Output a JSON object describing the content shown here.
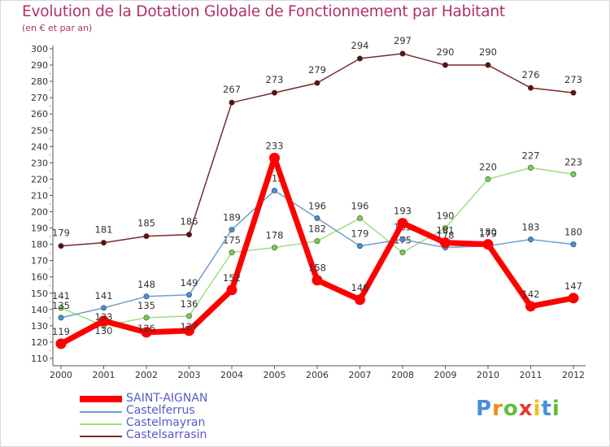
{
  "header": {
    "title": "Evolution de la Dotation Globale de Fonctionnement par Habitant",
    "subtitle": "(en € et par an)"
  },
  "legend": {
    "items": [
      {
        "label": "SAINT-AIGNAN",
        "color": "#ff0000"
      },
      {
        "label": "Castelferrus",
        "color": "#6e9fd0"
      },
      {
        "label": "Castelmayran",
        "color": "#9de07a"
      },
      {
        "label": "Castelsarrasin",
        "color": "#7a2a2a"
      }
    ]
  },
  "logo": {
    "letters": [
      "P",
      "r",
      "o",
      "x",
      "i",
      "t",
      "i"
    ],
    "colors": [
      "#4a8fd8",
      "#f08a1c",
      "#5bbf3a",
      "#e03a3a",
      "#f0c020",
      "#4a8fd8",
      "#5bbf3a"
    ]
  },
  "chart_data": {
    "type": "line",
    "title": "Evolution de la Dotation Globale de Fonctionnement par Habitant",
    "ylabel": "(en € et par an)",
    "xlabel": "",
    "ylim": [
      110,
      300
    ],
    "y_ticks": [
      110,
      120,
      130,
      140,
      150,
      160,
      170,
      180,
      190,
      200,
      210,
      220,
      230,
      240,
      250,
      260,
      270,
      280,
      290,
      300
    ],
    "categories": [
      "2000",
      "2001",
      "2002",
      "2003",
      "2004",
      "2005",
      "2006",
      "2007",
      "2008",
      "2009",
      "2010",
      "2011",
      "2012"
    ],
    "grid": false,
    "legend_position": "bottom-left",
    "series": [
      {
        "name": "Castelsarrasin",
        "color": "#7a2a2a",
        "marker_color": "#5a1010",
        "values": [
          179,
          181,
          185,
          186,
          267,
          273,
          279,
          294,
          297,
          290,
          290,
          276,
          273
        ]
      },
      {
        "name": "Castelmayran",
        "color": "#9de07a",
        "marker_color": "#7ad04a",
        "values": [
          141,
          130,
          135,
          136,
          175,
          178,
          182,
          196,
          175,
          190,
          220,
          227,
          223
        ]
      },
      {
        "name": "Castelferrus",
        "color": "#6e9fd0",
        "marker_color": "#4a8fd8",
        "values": [
          135,
          141,
          148,
          149,
          189,
          213,
          196,
          179,
          183,
          178,
          179,
          183,
          180
        ]
      },
      {
        "name": "SAINT-AIGNAN",
        "color": "#ff0000",
        "marker_color": "#ff0000",
        "values": [
          119,
          133,
          126,
          127,
          152,
          233,
          158,
          146,
          193,
          181,
          180,
          142,
          147
        ]
      }
    ],
    "data_labels": {
      "Castelsarrasin": [
        "179",
        "181",
        "185",
        "186",
        "267",
        "273",
        "279",
        "294",
        "297",
        "290",
        "290",
        "276",
        "273"
      ],
      "Castelmayran": [
        "141",
        "130",
        "135",
        "136",
        "175",
        "178",
        "182",
        "196",
        "175",
        "190",
        "220",
        "227",
        "223"
      ],
      "Castelferrus": [
        "135",
        "141",
        "148",
        "149",
        "189",
        "213",
        "196",
        "179",
        "183",
        "178",
        "179",
        "183",
        "180"
      ],
      "SAINT-AIGNAN": [
        "119",
        "133",
        "126",
        "127",
        "152",
        "233",
        "158",
        "146",
        "193",
        "181",
        "180",
        "142",
        "147"
      ]
    }
  }
}
